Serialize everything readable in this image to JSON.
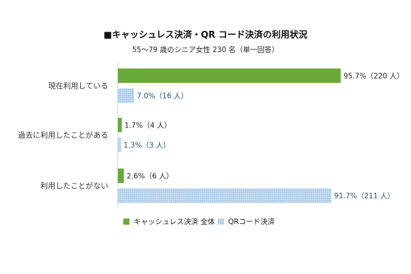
{
  "chart_data": {
    "type": "bar",
    "orientation": "horizontal",
    "title": "■キャッシュレス決済・QR コード決済の利用状況",
    "subtitle": "55～79 歳のシニア女性 230 名（単一回答）",
    "categories": [
      "現在利用している",
      "過去に利用したことがある",
      "利用したことがない"
    ],
    "series": [
      {
        "name": "キャッシュレス決済 全体",
        "color": "#6aaa3a",
        "pattern": "solid",
        "values": [
          95.7,
          1.7,
          2.6
        ],
        "labels": [
          "95.7%（220 人）",
          "1.7%（4 人）",
          "2.6%（6 人）"
        ]
      },
      {
        "name": "QRコード決済",
        "color": "#9dc3e6",
        "pattern": "dotted",
        "values": [
          7.0,
          1.3,
          91.7
        ],
        "labels": [
          "7.0%（16 人）",
          "1.3%（3 人）",
          "91.7%（211 人）"
        ]
      }
    ],
    "xlim": [
      0,
      100
    ],
    "legend_position": "bottom",
    "grid": false
  }
}
